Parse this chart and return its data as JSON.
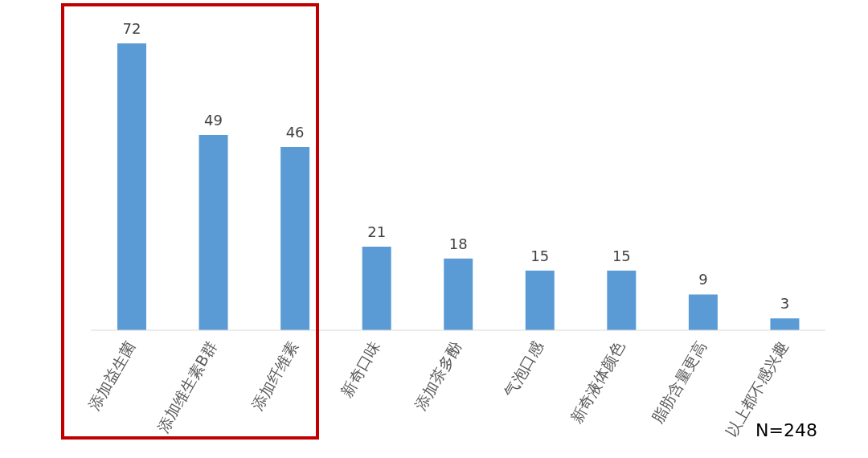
{
  "chart_data": {
    "type": "bar",
    "categories": [
      "添加益生菌",
      "添加维生素B群",
      "添加纤维素",
      "新奇口味",
      "添加茶多酚",
      "气泡口感",
      "新奇液体颜色",
      "脂肪含量更高",
      "以上都不感兴趣"
    ],
    "values": [
      72,
      49,
      46,
      21,
      18,
      15,
      15,
      9,
      3
    ],
    "color": "#5b9bd5",
    "data_labels": true,
    "annotations": [
      "N=248"
    ]
  }
}
